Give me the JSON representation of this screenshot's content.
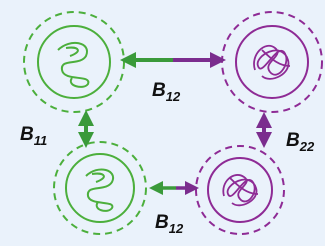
{
  "edges": [
    {
      "label": "B",
      "subscript": "12"
    },
    {
      "label": "B",
      "subscript": "11"
    },
    {
      "label": "B",
      "subscript": "22"
    },
    {
      "label": "B",
      "subscript": "12"
    }
  ]
}
